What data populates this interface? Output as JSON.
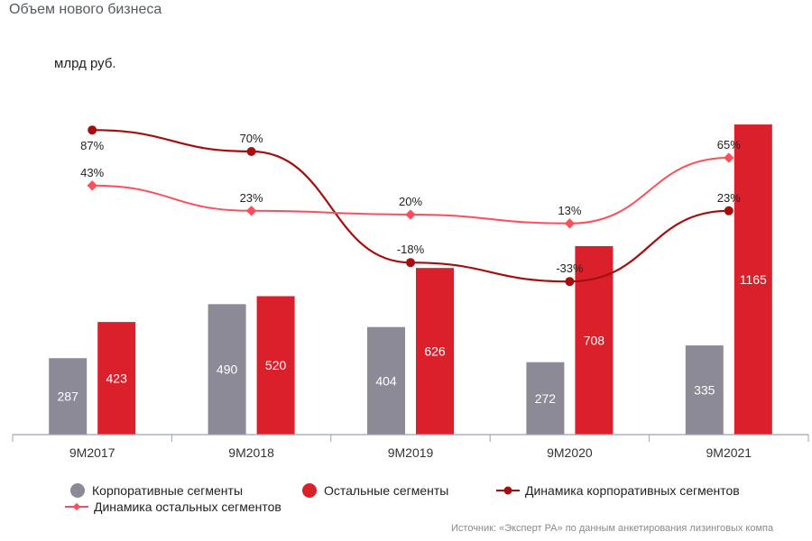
{
  "title": "Объем нового бизнеса",
  "unit": "млрд руб.",
  "source": "Источник: «Эксперт РА» по данным анкетирования лизинговых компа",
  "colors": {
    "corporate_bar": "#8b8a96",
    "other_bar": "#d9202b",
    "corporate_line": "#a50e0e",
    "other_line": "#ff4d5a",
    "axis": "#9aa3b5"
  },
  "chart_data": {
    "type": "bar",
    "categories": [
      "9M2017",
      "9M2018",
      "9M2019",
      "9M2020",
      "9M2021"
    ],
    "series": [
      {
        "name": "Корпоративные сегменты",
        "kind": "bar",
        "values": [
          287,
          490,
          404,
          272,
          335
        ],
        "labels": [
          "287",
          "490",
          "404",
          "272",
          "335"
        ]
      },
      {
        "name": "Остальные сегменты",
        "kind": "bar",
        "values": [
          423,
          520,
          626,
          708,
          1165
        ],
        "labels": [
          "423",
          "520",
          "626",
          "708",
          "1165"
        ]
      },
      {
        "name": "Динамика корпоративных сегментов",
        "kind": "line",
        "values": [
          87,
          70,
          -18,
          -33,
          23
        ],
        "labels": [
          "87%",
          "70%",
          "-18%",
          "-33%",
          "23%"
        ]
      },
      {
        "name": "Динамика остальных сегментов",
        "kind": "line",
        "values": [
          43,
          23,
          20,
          13,
          65
        ],
        "labels": [
          "43%",
          "23%",
          "20%",
          "13%",
          "65%"
        ]
      }
    ],
    "bar_ylim": [
      0,
      1260
    ],
    "line_ylim": [
      -110,
      140
    ],
    "legend_position": "bottom"
  }
}
